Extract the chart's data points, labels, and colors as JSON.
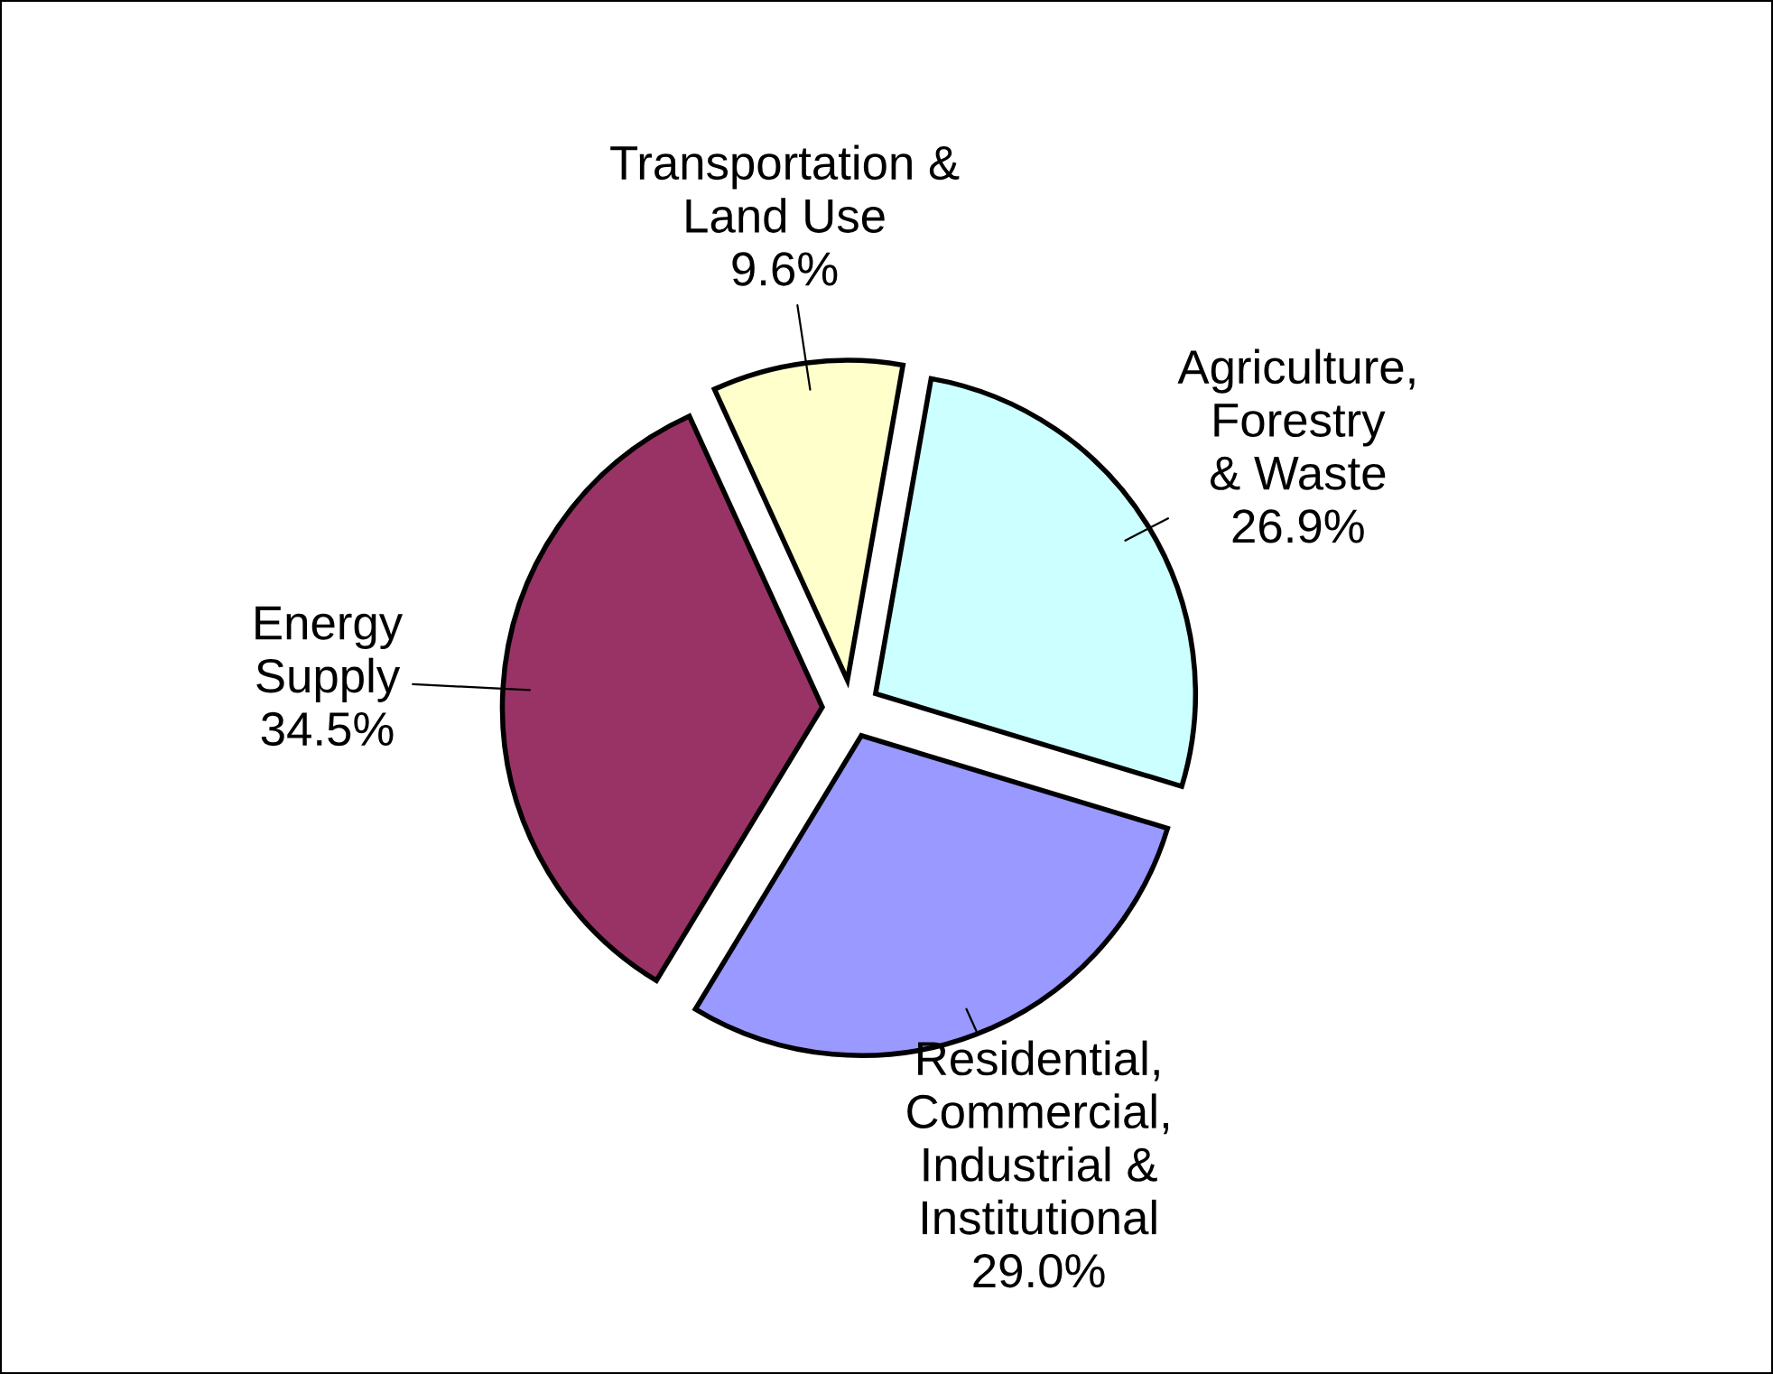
{
  "chart_data": {
    "type": "pie",
    "categories": [
      "Agriculture,\nForestry\n& Waste",
      "Residential,\nCommercial,\nIndustrial &\nInstitutional",
      "Energy\nSupply",
      "Transportation &\nLand Use"
    ],
    "values": [
      26.9,
      29.0,
      34.5,
      9.6
    ],
    "value_labels": [
      "26.9%",
      "29.0%",
      "34.5%",
      "9.6%"
    ],
    "colors": [
      "#ccffff",
      "#9999ff",
      "#993366",
      "#ffffcc"
    ],
    "legend": false
  }
}
